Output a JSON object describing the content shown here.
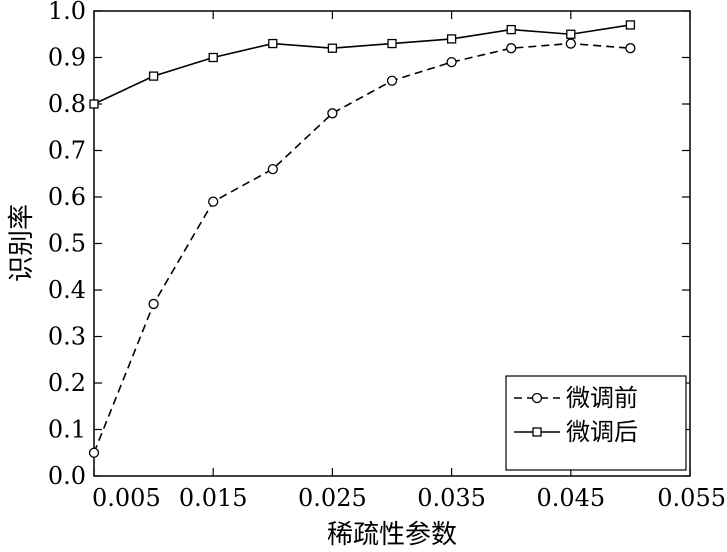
{
  "chart_data": {
    "type": "line",
    "xlabel": "稀疏性参数",
    "ylabel": "识别率",
    "xlim": [
      0.005,
      0.055
    ],
    "ylim": [
      0.0,
      1.0
    ],
    "x_ticks": [
      0.005,
      0.015,
      0.025,
      0.035,
      0.045,
      0.055
    ],
    "x_tick_labels": [
      "0.005",
      "0.015",
      "0.025",
      "0.035",
      "0.045",
      "0.055"
    ],
    "y_ticks": [
      0.0,
      0.1,
      0.2,
      0.3,
      0.4,
      0.5,
      0.6,
      0.7,
      0.8,
      0.9,
      1.0
    ],
    "y_tick_labels": [
      "0.0",
      "0.1",
      "0.2",
      "0.3",
      "0.4",
      "0.5",
      "0.6",
      "0.7",
      "0.8",
      "0.9",
      "1.0"
    ],
    "grid": false,
    "legend_position": "bottom-right",
    "x": [
      0.005,
      0.01,
      0.015,
      0.02,
      0.025,
      0.03,
      0.035,
      0.04,
      0.045,
      0.05
    ],
    "series": [
      {
        "name": "微调前",
        "line_style": "dashed",
        "marker": "circle",
        "values": [
          0.05,
          0.37,
          0.59,
          0.66,
          0.78,
          0.85,
          0.89,
          0.92,
          0.93,
          0.92
        ]
      },
      {
        "name": "微调后",
        "line_style": "solid",
        "marker": "square",
        "values": [
          0.8,
          0.86,
          0.9,
          0.93,
          0.92,
          0.93,
          0.94,
          0.96,
          0.95,
          0.97
        ]
      }
    ]
  }
}
